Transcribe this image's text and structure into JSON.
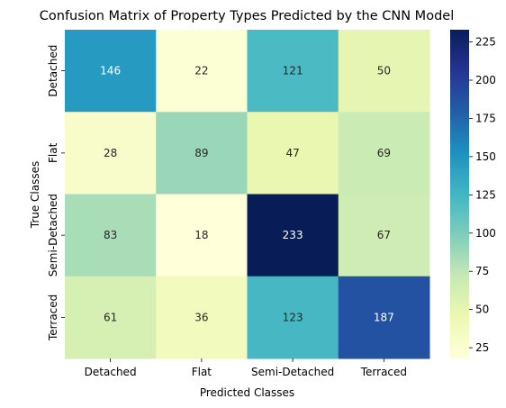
{
  "chart_data": {
    "type": "heatmap",
    "title": "Confusion Matrix of Property Types Predicted by the CNN Model",
    "xlabel": "Predicted Classes",
    "ylabel": "True Classes",
    "x_categories": [
      "Detached",
      "Flat",
      "Semi-Detached",
      "Terraced"
    ],
    "y_categories": [
      "Detached",
      "Flat",
      "Semi-Detached",
      "Terraced"
    ],
    "values": [
      [
        146,
        22,
        121,
        50
      ],
      [
        28,
        89,
        47,
        69
      ],
      [
        83,
        18,
        233,
        67
      ],
      [
        61,
        36,
        123,
        187
      ]
    ],
    "colormap": "YlGnBu",
    "colorbar": {
      "min": 18,
      "max": 233,
      "ticks": [
        25,
        50,
        75,
        100,
        125,
        150,
        175,
        200,
        225
      ]
    },
    "annotation_colors": {
      "dark_cell": "#ffffff",
      "light_cell": "#262626"
    }
  }
}
